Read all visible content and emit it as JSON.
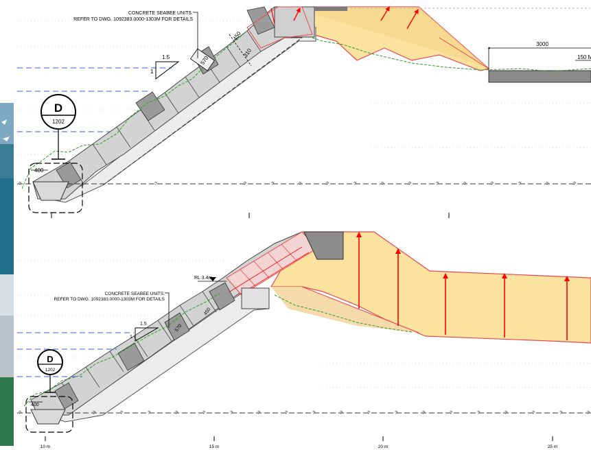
{
  "top_section": {
    "note_line1": "CONCRETE SEABEE UNITS.",
    "note_line2": "REFER TO DWG. 1092383.0000-1303M FOR DETAILS",
    "slope_h": "1.5",
    "slope_v": "1",
    "dim_570": "570",
    "dim_450": "450",
    "dim_310": "310",
    "detail_letter": "D",
    "detail_sheet": "1202",
    "toe_width": "400",
    "dim_3000": "3000",
    "dim_150": "150 M"
  },
  "bottom_section": {
    "note_line1": "CONCRETE SEABEE UNITS.",
    "note_line2": "REFER TO DWG. 1092383.0000-1303M FOR DETAILS",
    "rl_label": "RL 3.4m",
    "slope_h": "1.5",
    "slope_v": "1",
    "dim_570": "570",
    "dim_450": "450",
    "detail_letter": "D",
    "detail_sheet": "1202",
    "toe_width": "400"
  },
  "scale_ticks": [
    "10 m",
    "15 m",
    "20 m",
    "25 m"
  ],
  "unknown_marker": "?",
  "colors": {
    "fill_zone": "#fbe29e",
    "fill_outline": "#e8474e",
    "arrow": "#ff0000",
    "armour": "#c9c9c9",
    "armour_dark": "#8c8c8c",
    "water_line": "#2f5fd8",
    "ground_line": "#2e9a2e"
  }
}
